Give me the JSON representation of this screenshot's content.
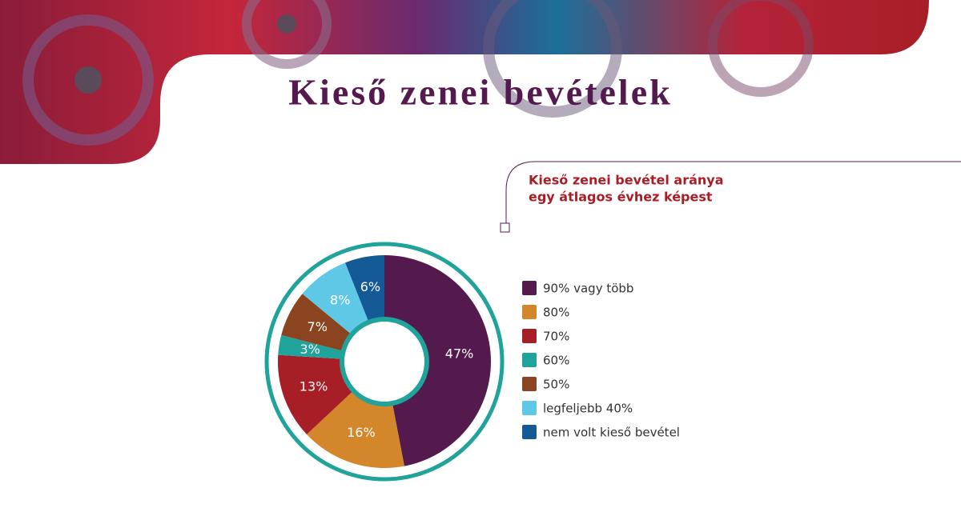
{
  "chart_data": {
    "type": "donut",
    "title": "Kieső zenei bevételek",
    "subtitle": [
      "Kieső zenei bevétel aránya",
      "egy átlagos évhez képest"
    ],
    "categories": [
      "90% vagy több",
      "80%",
      "70%",
      "60%",
      "50%",
      "legfeljebb 40%",
      "nem volt kieső bevétel"
    ],
    "values": [
      47,
      16,
      13,
      3,
      7,
      8,
      6
    ],
    "value_labels": [
      "47%",
      "16%",
      "13%",
      "3%",
      "7%",
      "8%",
      "6%"
    ],
    "colors": [
      "#541a4e",
      "#d4862a",
      "#a81e26",
      "#1fa39a",
      "#8a4520",
      "#5ec8e6",
      "#135a96"
    ]
  }
}
